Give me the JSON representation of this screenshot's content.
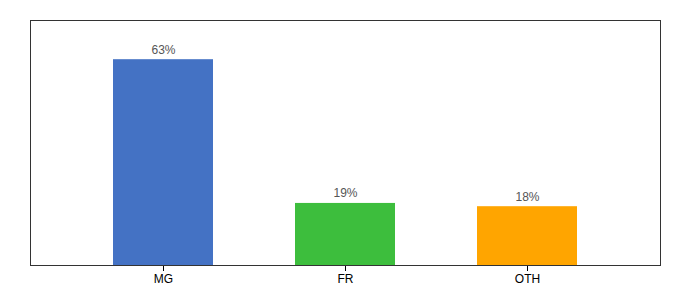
{
  "chart_data": {
    "type": "bar",
    "categories": [
      "MG",
      "FR",
      "OTH"
    ],
    "values": [
      63,
      19,
      18
    ],
    "value_labels": [
      "63%",
      "19%",
      "18%"
    ],
    "colors": [
      "#4472C4",
      "#3DBE3D",
      "#FFA500"
    ],
    "ylim": [
      0,
      75
    ],
    "data_labels": true,
    "tick_labels": "x",
    "grid": false
  }
}
